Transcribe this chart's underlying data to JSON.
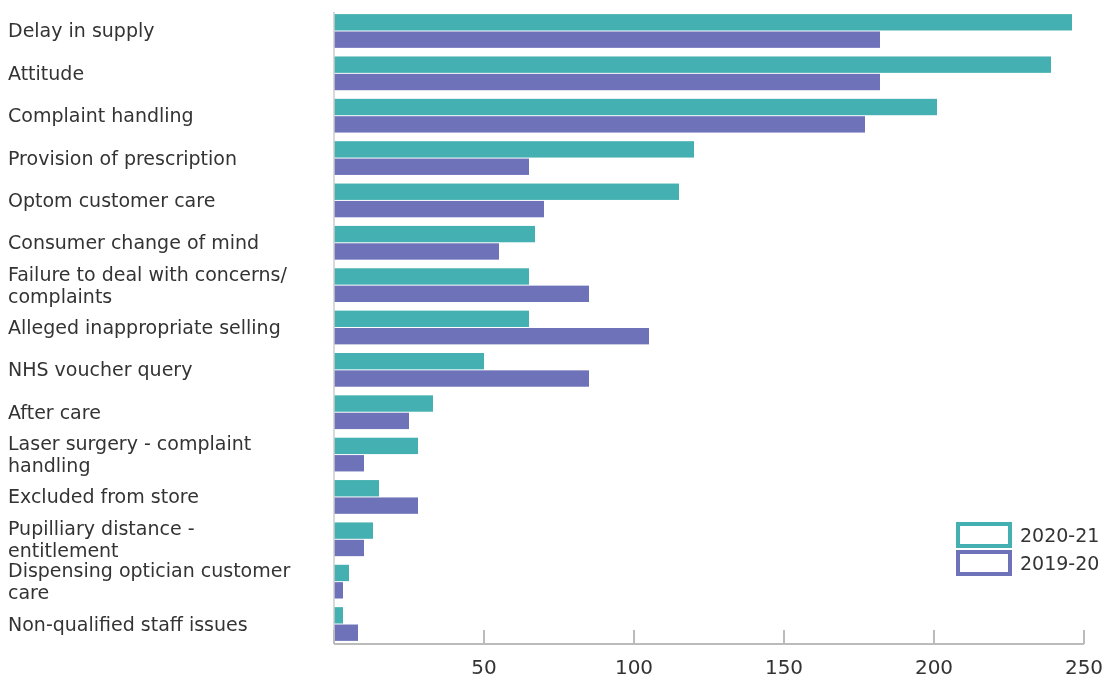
{
  "chart_data": {
    "type": "bar",
    "orientation": "horizontal",
    "categories": [
      "Delay in supply",
      "Attitude",
      "Complaint handling",
      "Provision of prescription",
      "Optom customer care",
      "Consumer change of mind",
      "Failure to deal with concerns/ complaints",
      "Alleged inappropriate selling",
      "NHS voucher query",
      "After care",
      "Laser surgery - complaint handling",
      "Excluded from store",
      "Pupilliary distance - entitlement",
      "Dispensing optician customer care",
      "Non-qualified staff issues"
    ],
    "series": [
      {
        "name": "2020-21",
        "color": "#45b0b1",
        "values": [
          246,
          239,
          201,
          120,
          115,
          67,
          65,
          65,
          50,
          33,
          28,
          15,
          13,
          5,
          3
        ]
      },
      {
        "name": "2019-20",
        "color": "#6e72b9",
        "values": [
          182,
          182,
          177,
          65,
          70,
          55,
          85,
          105,
          85,
          25,
          10,
          28,
          10,
          3,
          8
        ]
      }
    ],
    "xlim": [
      0,
      250
    ],
    "xticks": [
      {
        "value": 0,
        "label": null
      },
      50,
      100,
      150,
      200,
      250
    ],
    "grid": false,
    "legend": "bottom right"
  }
}
